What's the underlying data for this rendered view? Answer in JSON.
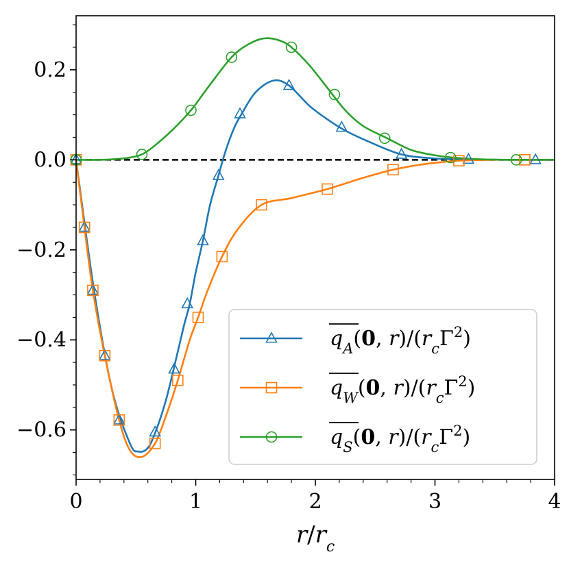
{
  "chart_data": {
    "type": "line",
    "xlabel": "r/r_c",
    "ylabel": "",
    "xlim": [
      0,
      4
    ],
    "ylim": [
      -0.71,
      0.32
    ],
    "xticks": [
      0,
      1,
      2,
      3,
      4
    ],
    "xtick_labels": [
      "0",
      "1",
      "2",
      "3",
      "4"
    ],
    "yticks": [
      0.2,
      0.0,
      -0.2,
      -0.4,
      -0.6
    ],
    "ytick_labels": [
      "0.2",
      "0.0",
      "−0.2",
      "−0.4",
      "−0.6"
    ],
    "legend_position": "bottom-right",
    "reference_line": {
      "y": 0.0,
      "style": "dashed",
      "color": "#000000"
    },
    "series": [
      {
        "name": "q_A(0,r)/(r_c Γ²)",
        "legend_label": "q_A(0, r)/(r_cΓ²)",
        "color": "#1f77b4",
        "marker": "triangle",
        "x": [
          0.0,
          0.15,
          0.3,
          0.45,
          0.52,
          0.6,
          0.67,
          0.75,
          0.82,
          0.9,
          0.95,
          1.0,
          1.06,
          1.12,
          1.19,
          1.25,
          1.32,
          1.38,
          1.5,
          1.65,
          1.78,
          1.95,
          2.1,
          2.25,
          2.45,
          2.72,
          3.0,
          3.28,
          3.6,
          3.84,
          4.0
        ],
        "y": [
          0.0,
          -0.29,
          -0.51,
          -0.63,
          -0.648,
          -0.64,
          -0.6,
          -0.535,
          -0.46,
          -0.37,
          -0.32,
          -0.25,
          -0.18,
          -0.1,
          -0.035,
          0.02,
          0.07,
          0.1,
          0.15,
          0.176,
          0.165,
          0.12,
          0.09,
          0.065,
          0.04,
          0.012,
          0.003,
          0.001,
          0.0,
          0.0,
          0.0
        ],
        "marker_x": [
          0.0,
          0.07,
          0.14,
          0.24,
          0.36,
          0.66,
          0.82,
          0.93,
          1.06,
          1.19,
          1.37,
          1.78,
          2.22,
          2.72,
          3.28,
          3.84
        ],
        "marker_y": [
          0.0,
          -0.15,
          -0.29,
          -0.435,
          -0.578,
          -0.605,
          -0.465,
          -0.32,
          -0.18,
          -0.035,
          0.102,
          0.165,
          0.072,
          0.012,
          0.001,
          0.0
        ]
      },
      {
        "name": "q_W(0,r)/(r_c Γ²)",
        "legend_label": "q_W(0, r)/(r_cΓ²)",
        "color": "#ff7f0e",
        "marker": "square",
        "x": [
          0.0,
          0.07,
          0.14,
          0.24,
          0.36,
          0.45,
          0.55,
          0.66,
          0.75,
          0.85,
          0.95,
          1.02,
          1.1,
          1.22,
          1.35,
          1.55,
          1.8,
          2.1,
          2.4,
          2.65,
          2.9,
          3.2,
          3.5,
          3.75,
          4.0
        ],
        "y": [
          0.0,
          -0.15,
          -0.29,
          -0.435,
          -0.578,
          -0.645,
          -0.66,
          -0.63,
          -0.57,
          -0.49,
          -0.4,
          -0.35,
          -0.29,
          -0.215,
          -0.155,
          -0.1,
          -0.085,
          -0.065,
          -0.04,
          -0.022,
          -0.01,
          -0.002,
          0.0,
          0.0,
          0.0
        ],
        "marker_x": [
          0.0,
          0.07,
          0.14,
          0.24,
          0.36,
          0.66,
          0.85,
          1.02,
          1.22,
          1.55,
          2.1,
          2.65,
          3.2,
          3.75
        ],
        "marker_y": [
          0.0,
          -0.15,
          -0.29,
          -0.435,
          -0.578,
          -0.63,
          -0.49,
          -0.35,
          -0.215,
          -0.1,
          -0.065,
          -0.022,
          -0.002,
          0.0
        ]
      },
      {
        "name": "q_S(0,r)/(r_c Γ²)",
        "legend_label": "q_S(0, r)/(r_cΓ²)",
        "color": "#2ca02c",
        "marker": "circle",
        "x": [
          0.0,
          0.2,
          0.35,
          0.45,
          0.55,
          0.65,
          0.8,
          0.96,
          1.1,
          1.3,
          1.45,
          1.58,
          1.7,
          1.8,
          1.95,
          2.1,
          2.25,
          2.4,
          2.6,
          2.8,
          3.0,
          3.15,
          3.4,
          3.7,
          4.0
        ],
        "y": [
          0.0,
          0.0,
          0.002,
          0.005,
          0.012,
          0.03,
          0.065,
          0.11,
          0.16,
          0.228,
          0.258,
          0.27,
          0.265,
          0.25,
          0.21,
          0.16,
          0.11,
          0.075,
          0.048,
          0.022,
          0.01,
          0.005,
          0.001,
          0.0,
          0.0
        ],
        "marker_x": [
          0.0,
          0.55,
          0.96,
          1.3,
          1.8,
          2.16,
          2.58,
          3.13,
          3.68
        ],
        "marker_y": [
          0.0,
          0.012,
          0.11,
          0.228,
          0.25,
          0.145,
          0.048,
          0.005,
          0.0
        ]
      }
    ]
  }
}
